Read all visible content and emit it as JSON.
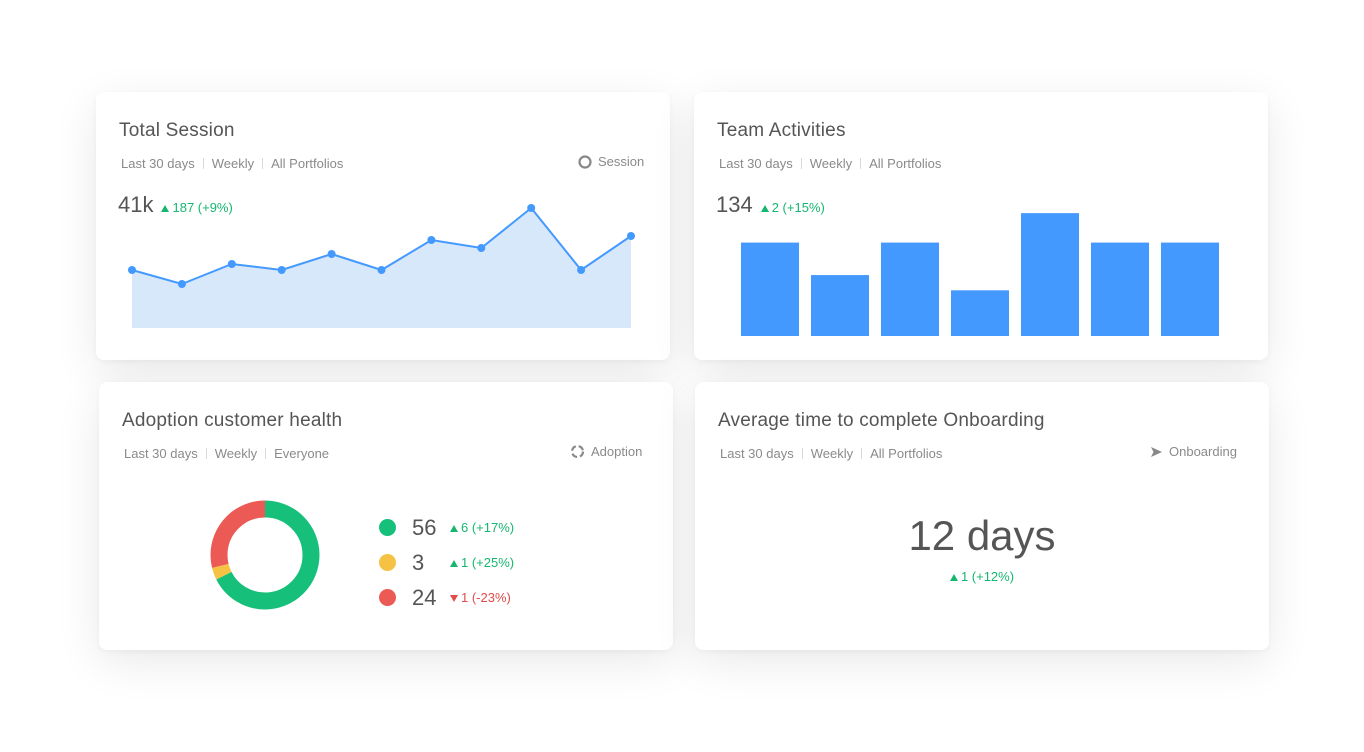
{
  "colors": {
    "accent": "#4499ff",
    "area": "#d7e8fb",
    "green": "#16b66f",
    "yellow": "#f6c244",
    "red": "#ec5a55"
  },
  "session": {
    "title": "Total Session",
    "filters": [
      "Last 30 days",
      "Weekly",
      "All Portfolios"
    ],
    "tag": "Session",
    "tag_icon": "circle-icon",
    "value": "41k",
    "delta": "187 (+9%)"
  },
  "team": {
    "title": "Team Activities",
    "filters": [
      "Last 30 days",
      "Weekly",
      "All Portfolios"
    ],
    "value": "134",
    "delta": "2 (+15%)"
  },
  "adoption": {
    "title": "Adoption customer health",
    "filters": [
      "Last 30 days",
      "Weekly",
      "Everyone"
    ],
    "tag": "Adoption",
    "tag_icon": "dashed-circle-icon",
    "legend": [
      {
        "value": "56",
        "delta": "6 (+17%)",
        "dir": "up",
        "color": "#16c07a"
      },
      {
        "value": "3",
        "delta": "1 (+25%)",
        "dir": "up",
        "color": "#f6c244"
      },
      {
        "value": "24",
        "delta": "1 (-23%)",
        "dir": "down",
        "color": "#ec5a55"
      }
    ]
  },
  "onboarding": {
    "title": "Average time to complete Onboarding",
    "filters": [
      "Last 30 days",
      "Weekly",
      "All Portfolios"
    ],
    "tag": "Onboarding",
    "tag_icon": "play-arrow-icon",
    "value": "12 days",
    "delta": "1 (+12%)"
  },
  "chart_data": [
    {
      "type": "area",
      "x": [
        1,
        2,
        3,
        4,
        5,
        6,
        7,
        8,
        9,
        10,
        11
      ],
      "values": [
        29,
        22,
        32,
        29,
        37,
        29,
        44,
        40,
        60,
        29,
        46
      ],
      "ylim": [
        0,
        75
      ],
      "grid": false
    },
    {
      "type": "bar",
      "categories": [
        "1",
        "2",
        "3",
        "4",
        "5",
        "6",
        "7"
      ],
      "values": [
        92,
        60,
        92,
        45,
        121,
        92,
        92
      ],
      "ylim": [
        0,
        130
      ],
      "grid": false
    },
    {
      "type": "pie",
      "categories": [
        "green",
        "yellow",
        "red"
      ],
      "values": [
        56,
        3,
        24
      ],
      "donut": true
    }
  ]
}
